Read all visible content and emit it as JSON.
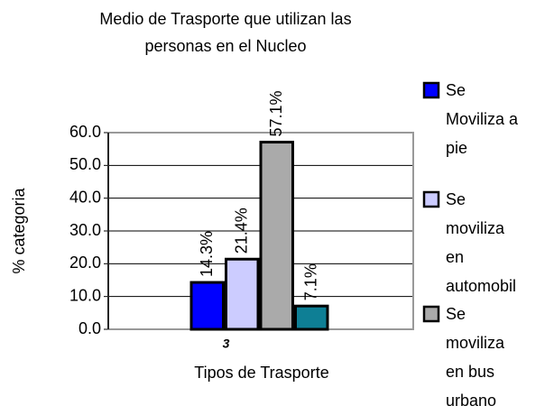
{
  "chart_data": {
    "type": "bar",
    "title": [
      "Medio de Trasporte que utilizan las",
      "personas en el Nucleo"
    ],
    "categories": [
      "3"
    ],
    "xlabel": "Tipos de Trasporte",
    "ylabel": "% categoria",
    "series": [
      {
        "name": "Se Moviliza a pie",
        "color": "#0000ff",
        "values": [
          14.3
        ],
        "value_labels": [
          "14.3%"
        ]
      },
      {
        "name": "Se moviliza en automobil",
        "color": "#ccccff",
        "values": [
          21.4
        ],
        "value_labels": [
          "21.4%"
        ]
      },
      {
        "name": "Se moviliza en bus urbano",
        "color": "#aaaaaa",
        "values": [
          57.1
        ],
        "value_labels": [
          "57.1%"
        ]
      },
      {
        "color": "#0e7f95",
        "values": [
          7.1
        ],
        "value_labels": [
          "7.1%"
        ]
      }
    ],
    "ylim": [
      0,
      60
    ],
    "yticks": [
      {
        "value": 0,
        "label": "0.0"
      },
      {
        "value": 10,
        "label": "10.0"
      },
      {
        "value": 20,
        "label": "20.0"
      },
      {
        "value": 30,
        "label": "30.0"
      },
      {
        "value": 40,
        "label": "40.0"
      },
      {
        "value": 50,
        "label": "50.0"
      },
      {
        "value": 60,
        "label": "60.0"
      }
    ],
    "grid": true
  }
}
